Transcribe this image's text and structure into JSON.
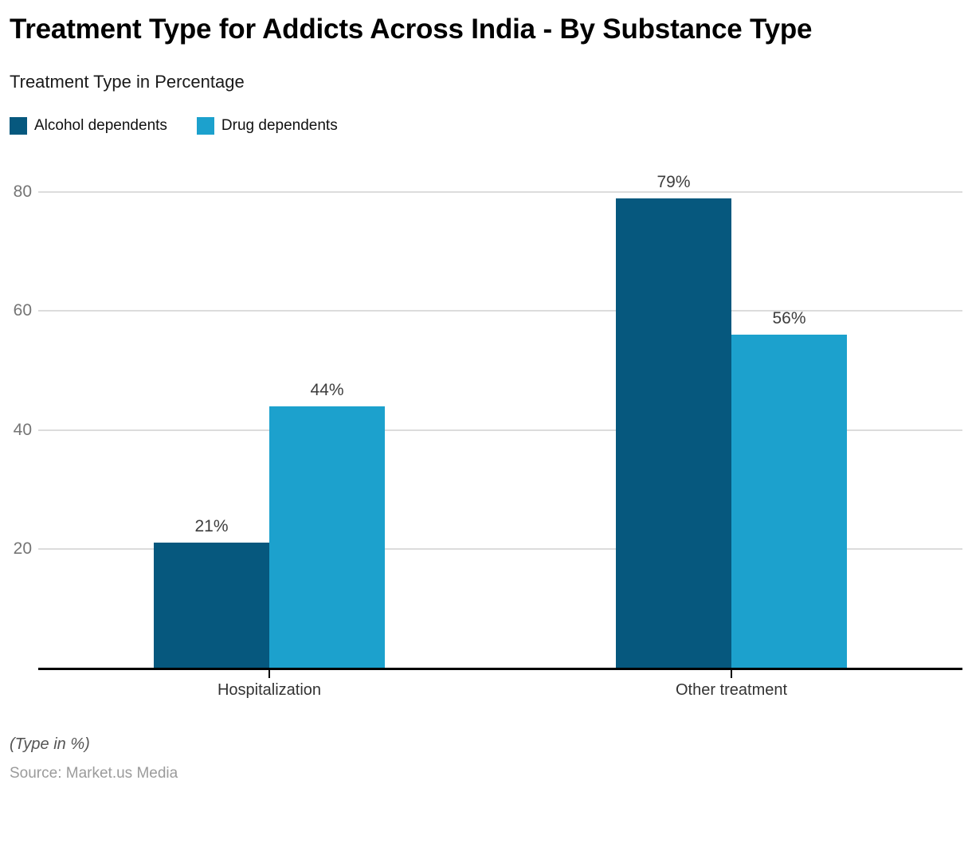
{
  "title": "Treatment Type for Addicts Across India - By Substance Type",
  "subtitle": "Treatment Type in Percentage",
  "chart_data": {
    "type": "bar",
    "categories": [
      "Hospitalization",
      "Other treatment"
    ],
    "series": [
      {
        "name": "Alcohol dependents",
        "color": "#06587e",
        "values": [
          21,
          79
        ],
        "value_labels": [
          "21%",
          "79%"
        ]
      },
      {
        "name": "Drug dependents",
        "color": "#1ca1cd",
        "values": [
          44,
          56
        ],
        "value_labels": [
          "44%",
          "56%"
        ]
      }
    ],
    "yticks": [
      20,
      40,
      60,
      80
    ],
    "ytick_labels": [
      "20",
      "40",
      "60",
      "80"
    ],
    "ylim": [
      0,
      85
    ],
    "grid": true,
    "legend_position": "top-left",
    "colors": {
      "grid": "#dcdcdc",
      "axis": "#000000",
      "tick_text": "#757575"
    }
  },
  "footer": {
    "note": "(Type in %)",
    "source": "Source: Market.us Media"
  }
}
